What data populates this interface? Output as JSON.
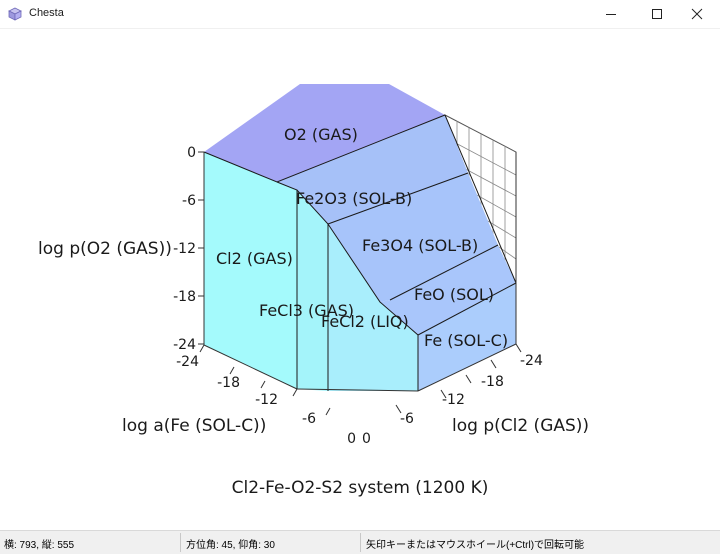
{
  "window": {
    "title": "Chesta"
  },
  "colors": {
    "o2": "#a3a5f4",
    "fe2o3": "#a6c1f8",
    "fe3o4": "#a7c4fa",
    "feo": "#a9c6fb",
    "fe": "#abcdfc",
    "cl2_side": "#a4fafc",
    "fecl3": "#a4f4fa",
    "fecl2": "#a9eefc",
    "edge": "#1a1a1a",
    "grid": "#7a7a7a"
  },
  "plot": {
    "title": "Cl2-Fe-O2-S2 system (1200 K)",
    "zlabel": "log p(O2 (GAS))",
    "xlabel": "log a(Fe (SOL-C))",
    "ylabel": "log p(Cl2 (GAS))",
    "z_ticks": [
      "0",
      "-6",
      "-12",
      "-18",
      "-24"
    ],
    "x_ticks": [
      "-24",
      "-18",
      "-12",
      "-6",
      "0"
    ],
    "y_ticks": [
      "-24",
      "-18",
      "-12",
      "-6",
      "0"
    ],
    "regions": {
      "o2": "O2 (GAS)",
      "fe2o3": "Fe2O3 (SOL-B)",
      "fe3o4": "Fe3O4 (SOL-B)",
      "feo": "FeO (SOL)",
      "fe": "Fe (SOL-C)",
      "cl2": "Cl2 (GAS)",
      "fecl3": "FeCl3 (GAS)",
      "fecl2": "FeCl2 (LIQ)"
    }
  },
  "status": {
    "coords": "横: 793, 縦: 555",
    "angles": "方位角: 45, 仰角: 30",
    "hint": "矢印キーまたはマウスホイール(+Ctrl)で回転可能"
  }
}
